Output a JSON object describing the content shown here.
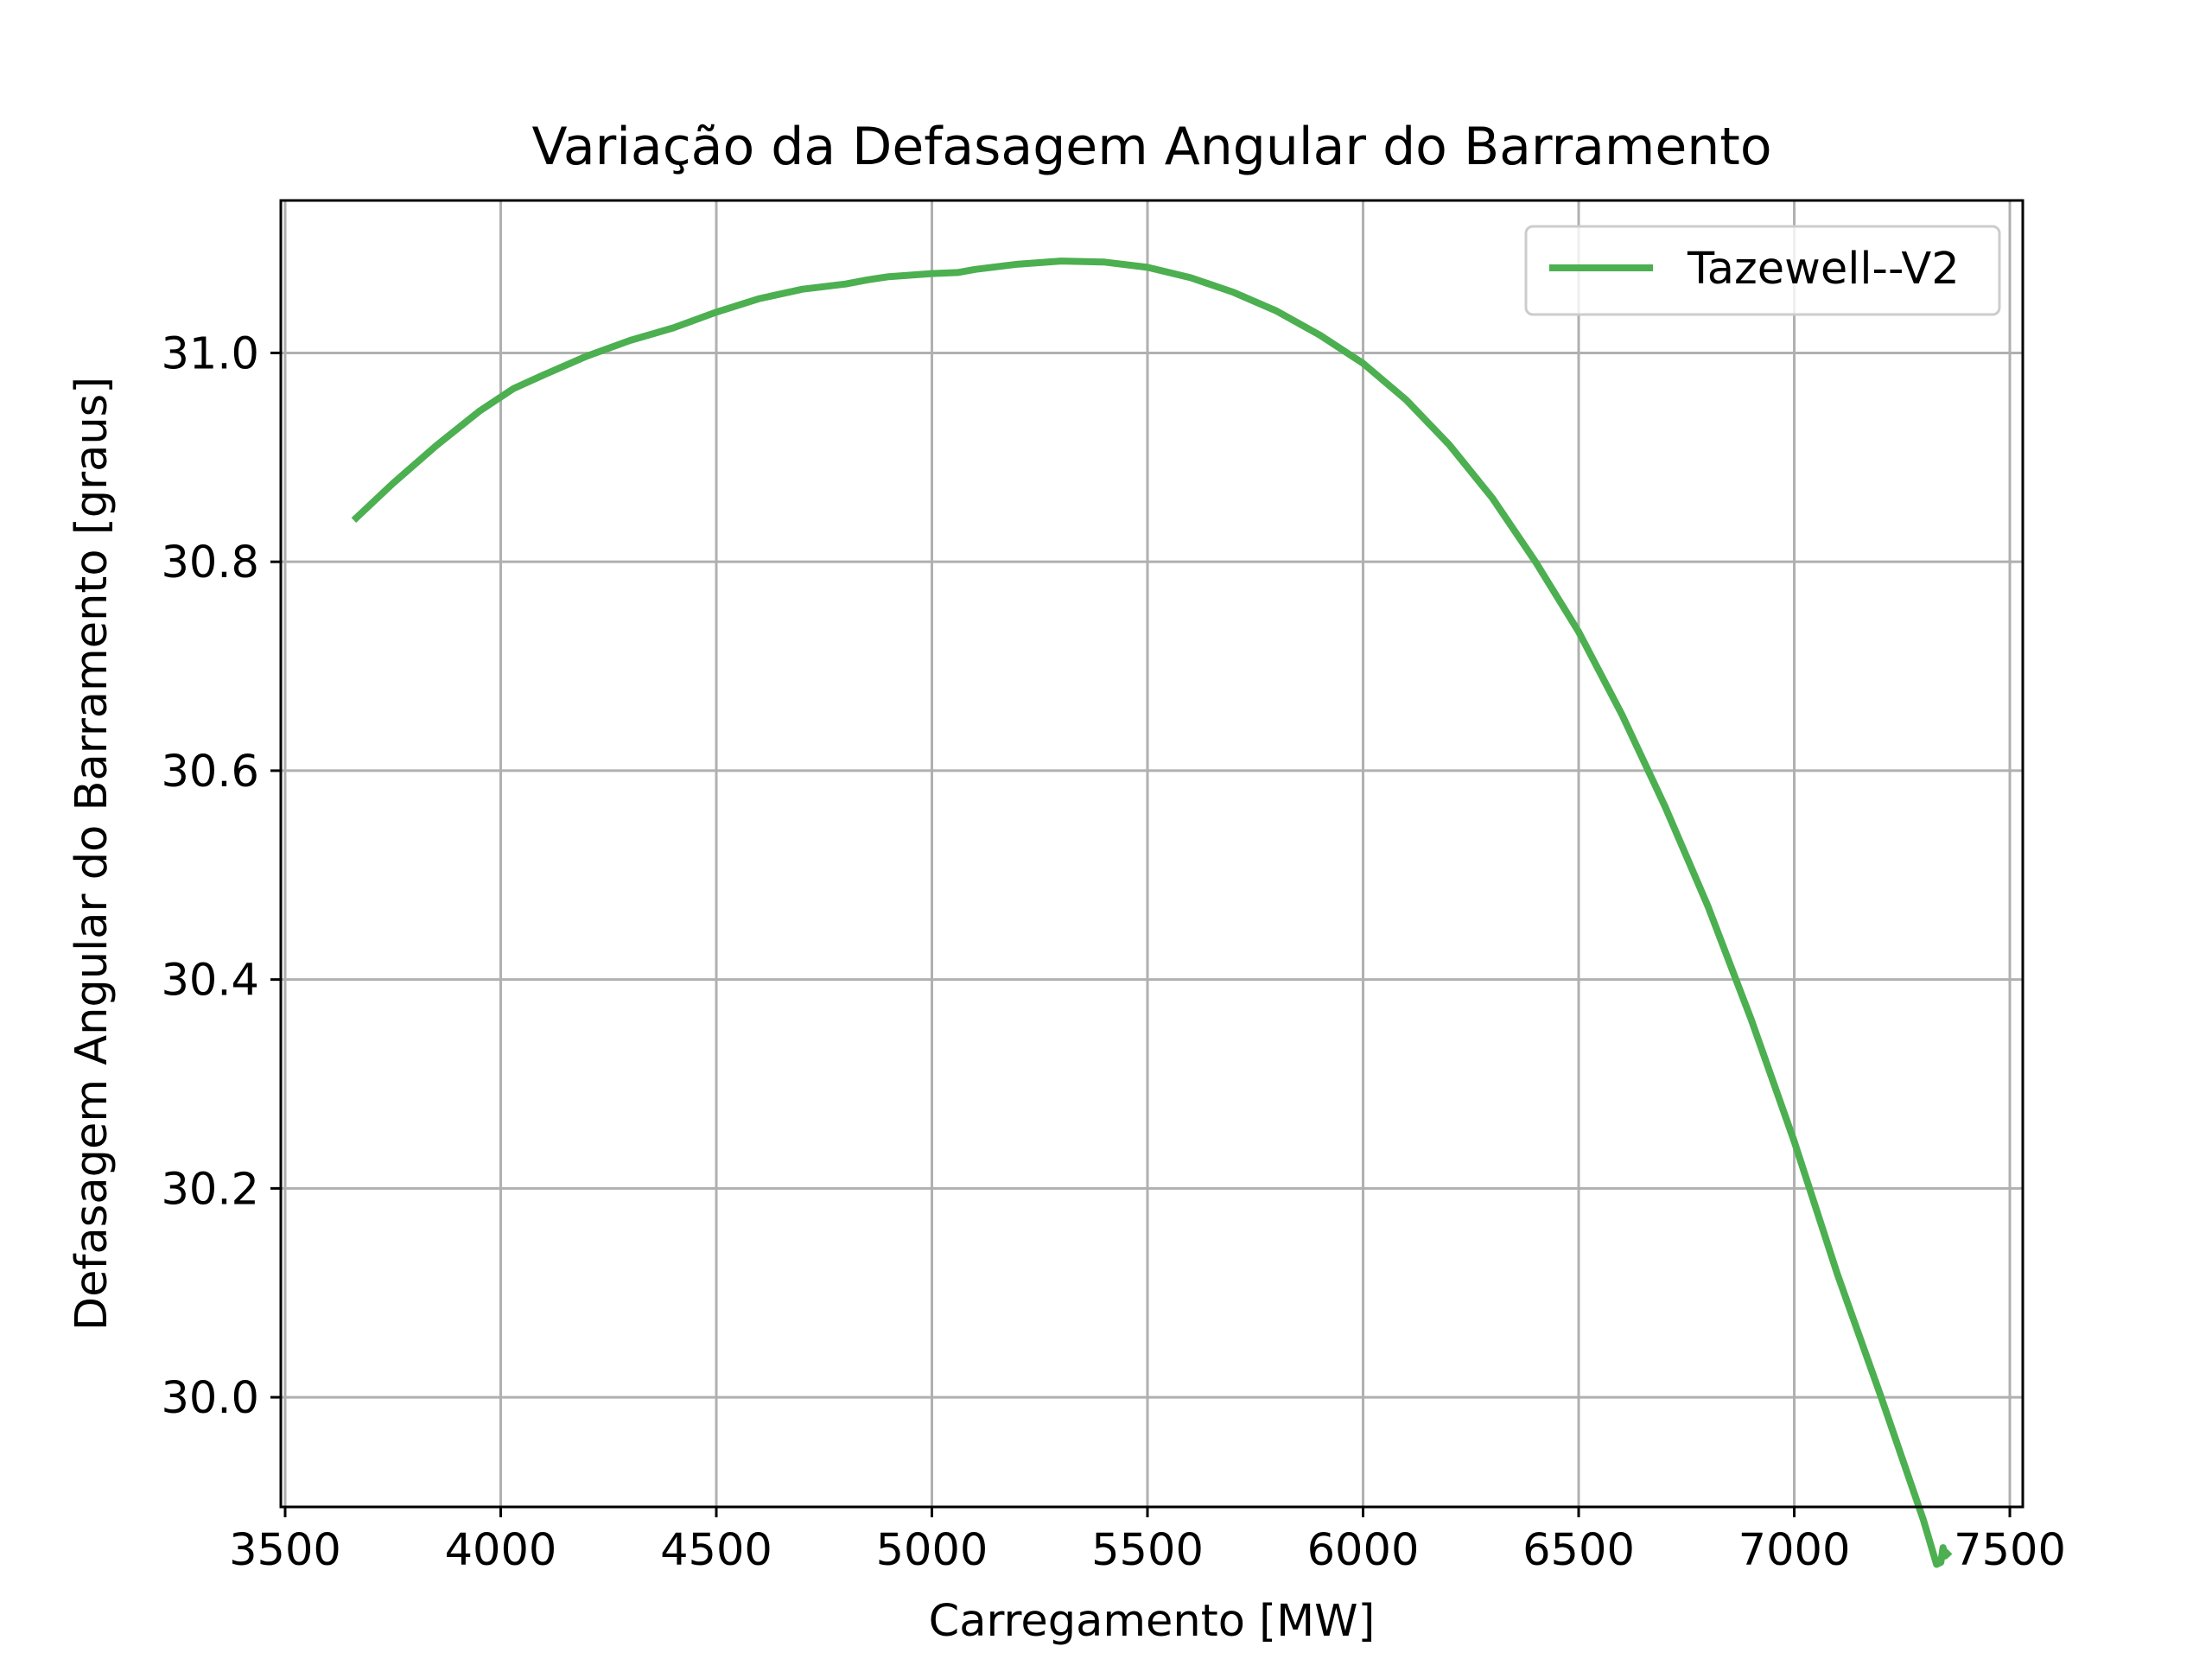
{
  "chart_data": {
    "type": "line",
    "title": "Variação da Defasagem Angular do Barramento",
    "xlabel": "Carregamento [MW]",
    "ylabel": "Defasagem Angular do Barramento [graus]",
    "xlim": [
      3490,
      7530
    ],
    "ylim": [
      29.895,
      31.146
    ],
    "grid": true,
    "legend_position": "top-right",
    "x_ticks": [
      3500,
      4000,
      4500,
      5000,
      5500,
      6000,
      6500,
      7000,
      7500
    ],
    "x_tick_labels": [
      "3500",
      "4000",
      "4500",
      "5000",
      "5500",
      "6000",
      "6500",
      "7000",
      "7500"
    ],
    "y_ticks": [
      30.0,
      30.2,
      30.4,
      30.6,
      30.8,
      31.0
    ],
    "y_tick_labels": [
      "30.0",
      "30.2",
      "30.4",
      "30.6",
      "30.8",
      "31.0"
    ],
    "series": [
      {
        "name": "Tazewell--V2",
        "color": "#4caf50",
        "x": [
          3665,
          3750,
          3850,
          3950,
          4030,
          4100,
          4200,
          4300,
          4400,
          4500,
          4600,
          4700,
          4800,
          4850,
          4900,
          5000,
          5060,
          5100,
          5200,
          5300,
          5400,
          5500,
          5600,
          5700,
          5800,
          5900,
          6000,
          6100,
          6200,
          6300,
          6400,
          6500,
          6600,
          6700,
          6800,
          6900,
          7000,
          7100,
          7200,
          7300,
          7330,
          7340,
          7345,
          7350,
          7355
        ],
        "y": [
          30.842,
          30.875,
          30.911,
          30.944,
          30.966,
          30.979,
          30.997,
          31.012,
          31.024,
          31.039,
          31.052,
          31.061,
          31.066,
          31.07,
          31.073,
          31.076,
          31.077,
          31.08,
          31.085,
          31.088,
          31.087,
          31.082,
          31.072,
          31.058,
          31.04,
          31.017,
          30.99,
          30.955,
          30.912,
          30.861,
          30.8,
          30.733,
          30.654,
          30.566,
          30.47,
          30.362,
          30.245,
          30.118,
          30.002,
          29.882,
          29.84,
          29.842,
          29.856,
          29.848,
          29.85
        ]
      }
    ]
  }
}
